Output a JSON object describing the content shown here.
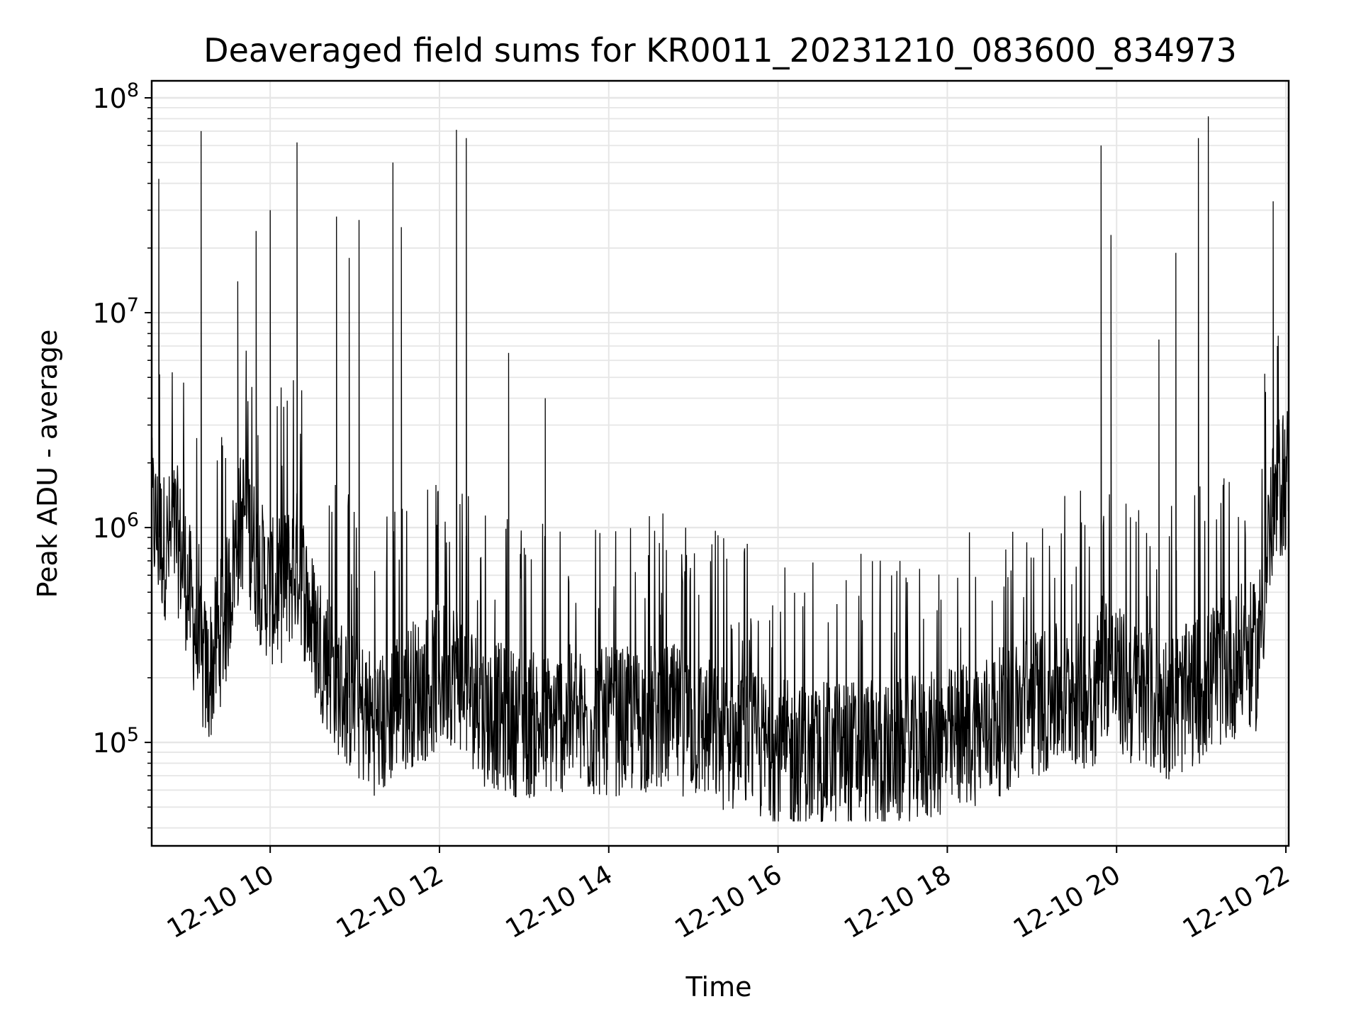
{
  "chart_data": {
    "type": "line",
    "title": "Deaveraged field sums for KR0011_20231210_083600_834973",
    "xlabel": "Time",
    "ylabel": "Peak ADU - average",
    "yscale": "log",
    "x_range": [
      "12-10 08:36",
      "12-10 22:02"
    ],
    "ylim": [
      33000,
      120000000
    ],
    "x_ticks": [
      "12-10 10",
      "12-10 12",
      "12-10 14",
      "12-10 16",
      "12-10 18",
      "12-10 20",
      "12-10 22"
    ],
    "y_ticks": [
      {
        "base": "10",
        "exp": "5"
      },
      {
        "base": "10",
        "exp": "6"
      },
      {
        "base": "10",
        "exp": "7"
      },
      {
        "base": "10",
        "exp": "8"
      }
    ],
    "grid": true,
    "line_color": "#000000",
    "grid_color": "#e6e6e6",
    "series": [
      {
        "x": [
          "12-10 08:36",
          "12-10 08:41",
          "12-10 08:47",
          "12-10 08:53",
          "12-10 09:00",
          "12-10 09:05",
          "12-10 09:10",
          "12-10 09:16",
          "12-10 09:23",
          "12-10 09:29",
          "12-10 09:35",
          "12-10 09:42",
          "12-10 09:48",
          "12-10 09:54",
          "12-10 10:00",
          "12-10 10:07",
          "12-10 10:14",
          "12-10 10:20",
          "12-10 10:30",
          "12-10 10:40",
          "12-10 10:50",
          "12-10 11:00",
          "12-10 11:10",
          "12-10 11:20",
          "12-10 11:30",
          "12-10 11:40",
          "12-10 11:50",
          "12-10 12:00",
          "12-10 12:10",
          "12-10 12:20",
          "12-10 12:30",
          "12-10 12:45",
          "12-10 13:00",
          "12-10 13:15",
          "12-10 13:30",
          "12-10 13:45",
          "12-10 14:00",
          "12-10 14:15",
          "12-10 14:30",
          "12-10 14:45",
          "12-10 15:00",
          "12-10 15:15",
          "12-10 15:30",
          "12-10 15:45",
          "12-10 16:00",
          "12-10 16:15",
          "12-10 16:30",
          "12-10 16:45",
          "12-10 17:00",
          "12-10 17:15",
          "12-10 17:30",
          "12-10 17:45",
          "12-10 18:00",
          "12-10 18:15",
          "12-10 18:30",
          "12-10 18:45",
          "12-10 19:00",
          "12-10 19:15",
          "12-10 19:30",
          "12-10 19:45",
          "12-10 19:50",
          "12-10 20:00",
          "12-10 20:10",
          "12-10 20:20",
          "12-10 20:30",
          "12-10 20:40",
          "12-10 20:50",
          "12-10 21:00",
          "12-10 21:08",
          "12-10 21:20",
          "12-10 21:30",
          "12-10 21:40",
          "12-10 21:48",
          "12-10 21:55",
          "12-10 22:02"
        ],
        "y": [
          1200000,
          900000,
          800000,
          950000,
          600000,
          400000,
          250000,
          200000,
          300000,
          400000,
          800000,
          1200000,
          800000,
          600000,
          500000,
          500000,
          600000,
          700000,
          350000,
          250000,
          180000,
          150000,
          130000,
          120000,
          160000,
          170000,
          180000,
          200000,
          220000,
          180000,
          140000,
          130000,
          120000,
          120000,
          130000,
          120000,
          125000,
          125000,
          130000,
          130000,
          120000,
          110000,
          100000,
          95000,
          90000,
          85000,
          85000,
          90000,
          90000,
          85000,
          90000,
          95000,
          100000,
          110000,
          120000,
          130000,
          150000,
          160000,
          165000,
          170000,
          250000,
          200000,
          170000,
          160000,
          150000,
          150000,
          160000,
          180000,
          200000,
          220000,
          250000,
          250000,
          900000,
          1500000,
          1800000
        ]
      }
    ],
    "spikes": [
      {
        "x": "12-10 08:41",
        "y": 42000000
      },
      {
        "x": "12-10 09:11",
        "y": 70000000
      },
      {
        "x": "12-10 09:37",
        "y": 14000000
      },
      {
        "x": "12-10 09:50",
        "y": 24000000
      },
      {
        "x": "12-10 10:00",
        "y": 30000000
      },
      {
        "x": "12-10 10:19",
        "y": 62000000
      },
      {
        "x": "12-10 10:47",
        "y": 28000000
      },
      {
        "x": "12-10 10:56",
        "y": 18000000
      },
      {
        "x": "12-10 11:03",
        "y": 27000000
      },
      {
        "x": "12-10 11:27",
        "y": 50000000
      },
      {
        "x": "12-10 11:33",
        "y": 25000000
      },
      {
        "x": "12-10 12:12",
        "y": 71000000
      },
      {
        "x": "12-10 12:19",
        "y": 65000000
      },
      {
        "x": "12-10 12:49",
        "y": 6500000
      },
      {
        "x": "12-10 13:15",
        "y": 4000000
      },
      {
        "x": "12-10 19:49",
        "y": 60000000
      },
      {
        "x": "12-10 19:56",
        "y": 23000000
      },
      {
        "x": "12-10 20:30",
        "y": 7500000
      },
      {
        "x": "12-10 20:42",
        "y": 19000000
      },
      {
        "x": "12-10 20:58",
        "y": 65000000
      },
      {
        "x": "12-10 21:05",
        "y": 82000000
      },
      {
        "x": "12-10 21:45",
        "y": 5200000
      },
      {
        "x": "12-10 21:51",
        "y": 33000000
      },
      {
        "x": "12-10 21:54",
        "y": 7000000
      }
    ]
  }
}
